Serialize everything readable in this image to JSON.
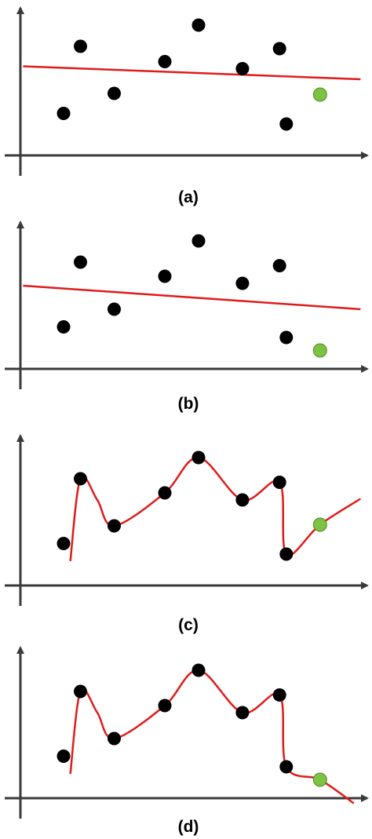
{
  "colors": {
    "axis": "#3a3a3a",
    "point": "#000000",
    "fit_curve": "#e01b1b",
    "test_point": "#7dc242",
    "test_point_edge": "#4f8a2a"
  },
  "panels": [
    {
      "label": "(a)",
      "fit": "linear",
      "training_points": [
        {
          "x": 1,
          "y": 2.5
        },
        {
          "x": 1.5,
          "y": 8.2
        },
        {
          "x": 2.5,
          "y": 4.2
        },
        {
          "x": 4,
          "y": 6.9
        },
        {
          "x": 5,
          "y": 10.0
        },
        {
          "x": 6.3,
          "y": 6.3
        },
        {
          "x": 7.4,
          "y": 8.0
        },
        {
          "x": 7.6,
          "y": 1.6
        }
      ],
      "test_point": {
        "x": 8.6,
        "y": 4.1
      },
      "fit_line": {
        "x": [
          -0.2,
          9.8
        ],
        "y": [
          6.5,
          5.4
        ]
      }
    },
    {
      "label": "(b)",
      "fit": "linear",
      "training_points": [
        {
          "x": 1,
          "y": 2.5
        },
        {
          "x": 1.5,
          "y": 8.0
        },
        {
          "x": 2.5,
          "y": 4.0
        },
        {
          "x": 4,
          "y": 6.8
        },
        {
          "x": 5,
          "y": 9.8
        },
        {
          "x": 6.3,
          "y": 6.2
        },
        {
          "x": 7.4,
          "y": 7.7
        },
        {
          "x": 7.6,
          "y": 1.6
        }
      ],
      "test_point": {
        "x": 8.6,
        "y": 0.5
      },
      "fit_line": {
        "x": [
          -0.2,
          9.8
        ],
        "y": [
          6.0,
          4.0
        ]
      }
    },
    {
      "label": "(c)",
      "fit": "curve",
      "training_points": [
        {
          "x": 1,
          "y": 2.5
        },
        {
          "x": 1.5,
          "y": 8.0
        },
        {
          "x": 2.5,
          "y": 4.0
        },
        {
          "x": 4,
          "y": 6.8
        },
        {
          "x": 5,
          "y": 9.8
        },
        {
          "x": 6.3,
          "y": 6.2
        },
        {
          "x": 7.4,
          "y": 7.7
        },
        {
          "x": 7.6,
          "y": 1.6
        }
      ],
      "test_point": {
        "x": 8.6,
        "y": 4.1
      },
      "fit_curve": [
        {
          "x": 1.2,
          "y": 1.0
        },
        {
          "x": 1.5,
          "y": 8.0
        },
        {
          "x": 2.0,
          "y": 6.2
        },
        {
          "x": 2.5,
          "y": 4.0
        },
        {
          "x": 4.0,
          "y": 6.8
        },
        {
          "x": 5.0,
          "y": 9.8
        },
        {
          "x": 6.3,
          "y": 6.2
        },
        {
          "x": 7.4,
          "y": 7.7
        },
        {
          "x": 7.6,
          "y": 1.6
        },
        {
          "x": 8.6,
          "y": 4.1
        },
        {
          "x": 9.8,
          "y": 6.3
        }
      ]
    },
    {
      "label": "(d)",
      "fit": "curve",
      "training_points": [
        {
          "x": 1,
          "y": 2.5
        },
        {
          "x": 1.5,
          "y": 8.0
        },
        {
          "x": 2.5,
          "y": 4.0
        },
        {
          "x": 4,
          "y": 6.8
        },
        {
          "x": 5,
          "y": 9.8
        },
        {
          "x": 6.3,
          "y": 6.2
        },
        {
          "x": 7.4,
          "y": 7.7
        },
        {
          "x": 7.6,
          "y": 1.6
        }
      ],
      "test_point": {
        "x": 8.6,
        "y": 0.5
      },
      "fit_curve": [
        {
          "x": 1.2,
          "y": 1.0
        },
        {
          "x": 1.5,
          "y": 8.0
        },
        {
          "x": 2.0,
          "y": 6.2
        },
        {
          "x": 2.5,
          "y": 4.0
        },
        {
          "x": 4.0,
          "y": 6.8
        },
        {
          "x": 5.0,
          "y": 9.8
        },
        {
          "x": 6.3,
          "y": 6.2
        },
        {
          "x": 7.4,
          "y": 7.7
        },
        {
          "x": 7.6,
          "y": 1.6
        },
        {
          "x": 8.6,
          "y": 0.5
        },
        {
          "x": 9.6,
          "y": -1.5
        }
      ]
    }
  ]
}
